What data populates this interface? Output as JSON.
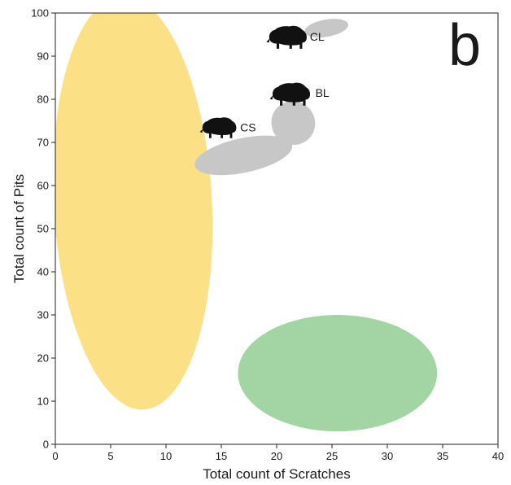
{
  "chart_data": {
    "type": "scatter",
    "title": "",
    "panel_label": "b",
    "xlabel": "Total count of Scratches",
    "ylabel": "Total count of Pits",
    "xlim": [
      0,
      40
    ],
    "ylim": [
      0,
      100
    ],
    "x_ticks": [
      0,
      5,
      10,
      15,
      20,
      25,
      30,
      35,
      40
    ],
    "y_ticks": [
      0,
      10,
      20,
      30,
      40,
      50,
      60,
      70,
      80,
      90,
      100
    ],
    "grid": false,
    "legend": "none",
    "regions": [
      {
        "name": "",
        "color": "#fce085",
        "center": [
          7,
          56
        ],
        "x_range": [
          0.2,
          14.5
        ],
        "y_range": [
          4,
          100
        ],
        "rotation_deg": -3
      },
      {
        "name": "",
        "color": "#a2d5a3",
        "center": [
          25.5,
          16.5
        ],
        "x_range": [
          17,
          35
        ],
        "y_range": [
          3,
          30
        ],
        "rotation_deg": 0
      },
      {
        "name": "CS",
        "color": "#c7c7c7",
        "center": [
          17,
          67
        ],
        "x_range": [
          12.5,
          21.5
        ],
        "y_range": [
          63,
          71
        ],
        "rotation_deg": -12
      },
      {
        "name": "BL",
        "color": "#c7c7c7",
        "center": [
          21.5,
          74.5
        ],
        "x_range": [
          19.5,
          23.5
        ],
        "y_range": [
          70,
          80
        ],
        "rotation_deg": 40
      },
      {
        "name": "CL",
        "color": "#c7c7c7",
        "center": [
          24.5,
          96.5
        ],
        "x_range": [
          22.5,
          26.5
        ],
        "y_range": [
          94,
          98
        ],
        "rotation_deg": -10
      }
    ],
    "group_labels": [
      {
        "text": "CS",
        "x": 16.7,
        "y": 73.5
      },
      {
        "text": "BL",
        "x": 23.5,
        "y": 81.5
      },
      {
        "text": "CL",
        "x": 23.0,
        "y": 94.5
      }
    ],
    "boar_icons": [
      {
        "name": "boar-icon-cs",
        "x": 14.8,
        "y": 73.5,
        "scale": 0.95
      },
      {
        "name": "boar-icon-bl",
        "x": 21.3,
        "y": 81.3,
        "scale": 1.05
      },
      {
        "name": "boar-icon-cl",
        "x": 21.0,
        "y": 94.5,
        "scale": 1.05
      }
    ]
  }
}
